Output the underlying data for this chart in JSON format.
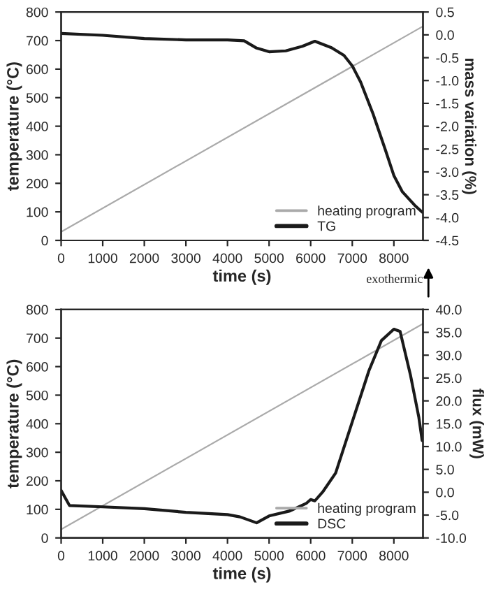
{
  "chart_data": [
    {
      "type": "line",
      "xlabel": "time (s)",
      "ylabel": "temperature (°C)",
      "y2label": "mass variation (%)",
      "xlim": [
        0,
        8700
      ],
      "xticks": [
        0,
        1000,
        2000,
        3000,
        4000,
        5000,
        6000,
        7000,
        8000
      ],
      "ylim": [
        0,
        800
      ],
      "yticks": [
        0,
        100,
        200,
        300,
        400,
        500,
        600,
        700,
        800
      ],
      "y2lim": [
        -4.5,
        0.5
      ],
      "y2ticks": [
        {
          "value": -4.5,
          "label": "-4.5"
        },
        {
          "value": -4.0,
          "label": "-4.0"
        },
        {
          "value": -3.5,
          "label": "-3.5"
        },
        {
          "value": -3.0,
          "label": "-3.0"
        },
        {
          "value": -2.5,
          "label": "-2.5"
        },
        {
          "value": -2.0,
          "label": "-2.0"
        },
        {
          "value": -1.5,
          "label": "-1.5"
        },
        {
          "value": -1.0,
          "label": "-1.0"
        },
        {
          "value": -0.5,
          "label": "-0.5"
        },
        {
          "value": 0.0,
          "label": "0.0"
        },
        {
          "value": 0.5,
          "label": "0.5"
        }
      ],
      "legend": "bottom right",
      "grid": false,
      "series": [
        {
          "name": "heating program",
          "color": "#aaaaaa",
          "x": [
            0,
            8700
          ],
          "values": [
            30,
            750
          ]
        },
        {
          "name": "TG",
          "color": "#1a1a1a",
          "axis": "y2",
          "x": [
            0,
            1000,
            2000,
            3000,
            4000,
            4400,
            4700,
            5000,
            5400,
            5800,
            6100,
            6500,
            6800,
            7000,
            7200,
            7500,
            7800,
            8000,
            8200,
            8500,
            8680
          ],
          "values": [
            0.03,
            -0.01,
            -0.08,
            -0.11,
            -0.11,
            -0.13,
            -0.29,
            -0.37,
            -0.35,
            -0.25,
            -0.14,
            -0.28,
            -0.45,
            -0.68,
            -1.03,
            -1.73,
            -2.53,
            -3.08,
            -3.43,
            -3.73,
            -3.88
          ]
        }
      ]
    },
    {
      "type": "line",
      "xlabel": "time (s)",
      "ylabel": "temperature (°C)",
      "y2label": "flux (mW)",
      "annotations": [
        "exothermic"
      ],
      "xlim": [
        0,
        8700
      ],
      "xticks": [
        0,
        1000,
        2000,
        3000,
        4000,
        5000,
        6000,
        7000,
        8000
      ],
      "ylim": [
        0,
        800
      ],
      "yticks": [
        0,
        100,
        200,
        300,
        400,
        500,
        600,
        700,
        800
      ],
      "y2lim": [
        -10,
        40
      ],
      "y2ticks": [
        {
          "value": -10,
          "label": "-10.0"
        },
        {
          "value": -5,
          "label": "-5.0"
        },
        {
          "value": 0,
          "label": "0.0"
        },
        {
          "value": 5,
          "label": "5.0"
        },
        {
          "value": 10,
          "label": "10.0"
        },
        {
          "value": 15,
          "label": "15.0"
        },
        {
          "value": 20,
          "label": "20.0"
        },
        {
          "value": 25,
          "label": "25.0"
        },
        {
          "value": 30,
          "label": "30.0"
        },
        {
          "value": 35,
          "label": "35.0"
        },
        {
          "value": 40,
          "label": "40.0"
        }
      ],
      "legend": "bottom right",
      "grid": false,
      "series": [
        {
          "name": "heating program",
          "color": "#aaaaaa",
          "x": [
            0,
            8700
          ],
          "values": [
            30,
            750
          ]
        },
        {
          "name": "DSC",
          "color": "#1a1a1a",
          "axis": "y2",
          "x": [
            0,
            200,
            1000,
            2000,
            3000,
            4000,
            4300,
            4700,
            5000,
            5500,
            5900,
            6000,
            6100,
            6300,
            6600,
            7000,
            7400,
            7700,
            8000,
            8150,
            8400,
            8600,
            8680
          ],
          "values": [
            0.4,
            -2.9,
            -3.2,
            -3.6,
            -4.4,
            -4.9,
            -5.4,
            -6.7,
            -5.2,
            -4.1,
            -2.4,
            -1.6,
            -1.9,
            0.2,
            4.2,
            15.4,
            26.6,
            33.2,
            35.7,
            35.2,
            25.6,
            16.4,
            11.3
          ]
        }
      ]
    }
  ]
}
